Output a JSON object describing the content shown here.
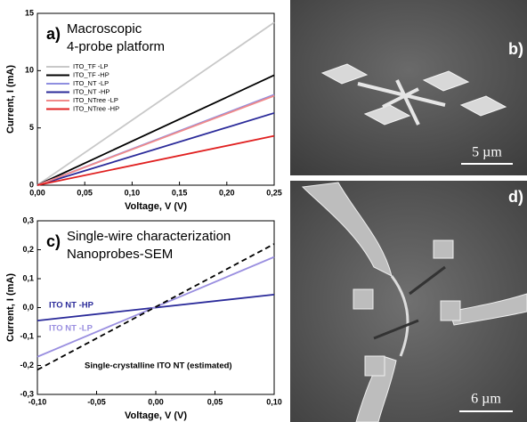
{
  "chart_data": [
    {
      "type": "line",
      "panel_label": "a)",
      "annotations": [
        "Macroscopic",
        "4-probe platform"
      ],
      "xlabel": "Voltage, V (V)",
      "ylabel": "Current, I (mA)",
      "x": [
        0,
        0.25
      ],
      "xlim": [
        0,
        0.25
      ],
      "xticks": [
        {
          "value": 0,
          "label": "0,00"
        },
        {
          "value": 0.05,
          "label": "0,05"
        },
        {
          "value": 0.1,
          "label": "0,10"
        },
        {
          "value": 0.15,
          "label": "0,15"
        },
        {
          "value": 0.2,
          "label": "0,20"
        },
        {
          "value": 0.25,
          "label": "0,25"
        }
      ],
      "ylim": [
        0,
        15
      ],
      "yticks": [
        0,
        5,
        10,
        15
      ],
      "legend": "upper left",
      "series": [
        {
          "name": "ITO_TF -LP",
          "color": "#c8c8c8",
          "values": [
            0,
            14.2
          ]
        },
        {
          "name": "ITO_TF -HP",
          "color": "#000000",
          "values": [
            0,
            9.6
          ]
        },
        {
          "name": "ITO_NT -LP",
          "color": "#8f8fe0",
          "values": [
            0,
            7.9
          ]
        },
        {
          "name": "ITO_NT -HP",
          "color": "#2b2b9a",
          "values": [
            0,
            6.3
          ]
        },
        {
          "name": "ITO_NTree -LP",
          "color": "#f08a8a",
          "values": [
            0,
            7.8
          ]
        },
        {
          "name": "ITO_NTree -HP",
          "color": "#e02020",
          "values": [
            0,
            4.3
          ]
        }
      ]
    },
    {
      "type": "line",
      "panel_label": "c)",
      "annotations": [
        "Single-wire characterization",
        "Nanoprobes-SEM"
      ],
      "xlabel": "Voltage, V (V)",
      "ylabel": "Current, I (mA)",
      "x": [
        -0.1,
        0.1
      ],
      "xlim": [
        -0.1,
        0.1
      ],
      "xticks": [
        {
          "value": -0.1,
          "label": "-0,10"
        },
        {
          "value": -0.05,
          "label": "-0,05"
        },
        {
          "value": 0,
          "label": "0,00"
        },
        {
          "value": 0.05,
          "label": "0,05"
        },
        {
          "value": 0.1,
          "label": "0,10"
        }
      ],
      "ylim": [
        -0.3,
        0.3
      ],
      "yticks": [
        {
          "value": -0.3,
          "label": "-0,3"
        },
        {
          "value": -0.2,
          "label": "-0,2"
        },
        {
          "value": -0.1,
          "label": "-0,1"
        },
        {
          "value": 0,
          "label": "0,0"
        },
        {
          "value": 0.1,
          "label": "0,1"
        },
        {
          "value": 0.2,
          "label": "0,2"
        },
        {
          "value": 0.3,
          "label": "0,3"
        }
      ],
      "legend": "inline",
      "series": [
        {
          "name": "ITO NT -HP",
          "color": "#2b2b9a",
          "values": [
            -0.045,
            0.045
          ]
        },
        {
          "name": "ITO NT -LP",
          "color": "#9a8fe0",
          "values": [
            -0.17,
            0.175
          ]
        },
        {
          "name": "Single-crystalline ITO NT (estimated)",
          "color": "#000000",
          "dash": true,
          "values": [
            -0.215,
            0.22
          ]
        }
      ]
    }
  ],
  "images": [
    {
      "label": "b)",
      "scale_bar": "5 µm"
    },
    {
      "label": "d)",
      "scale_bar": "6 µm"
    }
  ]
}
